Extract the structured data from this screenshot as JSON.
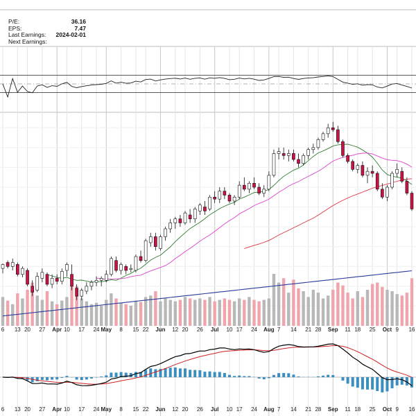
{
  "stats": [
    {
      "label": "P/E:",
      "value": "36.16"
    },
    {
      "label": "EPS:",
      "value": "7.47"
    },
    {
      "label": "Last Earnings:",
      "value": "2024-02-01"
    },
    {
      "label": "Next Earnings:",
      "value": ""
    }
  ],
  "colors": {
    "up_candle": "#ffffff",
    "down_candle": "#cc1144",
    "ma_short": "#2e7d32",
    "ma_mid": "#dd44cc",
    "ma_long": "#dd3344",
    "ma_200": "#2a3a99",
    "vol_up": "#b8b8b8",
    "vol_down": "#f0a5ad",
    "macd": "#000000",
    "signal": "#cc2222",
    "hist": "#3a8fc0",
    "osc_fill": "#3c8a3c"
  },
  "chart_data": {
    "type": "candlestick",
    "date_axis": {
      "ticks": [
        "6",
        "13",
        "20",
        "27",
        "Apr",
        "10",
        "17",
        "24",
        "May",
        "8",
        "15",
        "22",
        "Jun",
        "12",
        "20",
        "26",
        "Jul",
        "10",
        "17",
        "24",
        "Aug",
        "7",
        "14",
        "21",
        "28",
        "Sep",
        "11",
        "18",
        "25",
        "Oct",
        "9",
        "16"
      ],
      "bold_ticks": [
        "Apr",
        "May",
        "Jun",
        "Jul",
        "Aug",
        "Sep",
        "Oct"
      ]
    },
    "series": [
      {
        "name": "price",
        "kind": "ohlc",
        "values": [
          {
            "o": 378,
            "h": 383,
            "l": 373,
            "c": 382
          },
          {
            "o": 384,
            "h": 386,
            "l": 378,
            "c": 380
          },
          {
            "o": 380,
            "h": 388,
            "l": 376,
            "c": 384
          },
          {
            "o": 382,
            "h": 384,
            "l": 370,
            "c": 372
          },
          {
            "o": 372,
            "h": 380,
            "l": 369,
            "c": 378
          },
          {
            "o": 376,
            "h": 378,
            "l": 360,
            "c": 362
          },
          {
            "o": 360,
            "h": 366,
            "l": 350,
            "c": 354
          },
          {
            "o": 356,
            "h": 374,
            "l": 354,
            "c": 370
          },
          {
            "o": 368,
            "h": 378,
            "l": 364,
            "c": 374
          },
          {
            "o": 372,
            "h": 374,
            "l": 360,
            "c": 362
          },
          {
            "o": 362,
            "h": 372,
            "l": 358,
            "c": 368
          },
          {
            "o": 368,
            "h": 372,
            "l": 362,
            "c": 365
          },
          {
            "o": 365,
            "h": 378,
            "l": 362,
            "c": 375
          },
          {
            "o": 376,
            "h": 384,
            "l": 370,
            "c": 382
          },
          {
            "o": 372,
            "h": 382,
            "l": 356,
            "c": 360
          },
          {
            "o": 358,
            "h": 362,
            "l": 346,
            "c": 350
          },
          {
            "o": 350,
            "h": 358,
            "l": 346,
            "c": 356
          },
          {
            "o": 355,
            "h": 364,
            "l": 352,
            "c": 360
          },
          {
            "o": 360,
            "h": 366,
            "l": 356,
            "c": 364
          },
          {
            "o": 364,
            "h": 370,
            "l": 360,
            "c": 366
          },
          {
            "o": 366,
            "h": 370,
            "l": 360,
            "c": 368
          },
          {
            "o": 366,
            "h": 376,
            "l": 364,
            "c": 372
          },
          {
            "o": 372,
            "h": 390,
            "l": 370,
            "c": 388
          },
          {
            "o": 386,
            "h": 390,
            "l": 374,
            "c": 376
          },
          {
            "o": 376,
            "h": 384,
            "l": 372,
            "c": 382
          },
          {
            "o": 380,
            "h": 382,
            "l": 372,
            "c": 376
          },
          {
            "o": 377,
            "h": 382,
            "l": 374,
            "c": 378
          },
          {
            "o": 376,
            "h": 392,
            "l": 374,
            "c": 390
          },
          {
            "o": 390,
            "h": 396,
            "l": 384,
            "c": 386
          },
          {
            "o": 386,
            "h": 408,
            "l": 384,
            "c": 406
          },
          {
            "o": 404,
            "h": 414,
            "l": 400,
            "c": 410
          },
          {
            "o": 410,
            "h": 414,
            "l": 396,
            "c": 400
          },
          {
            "o": 398,
            "h": 412,
            "l": 396,
            "c": 410
          },
          {
            "o": 410,
            "h": 420,
            "l": 406,
            "c": 418
          },
          {
            "o": 418,
            "h": 428,
            "l": 414,
            "c": 424
          },
          {
            "o": 424,
            "h": 430,
            "l": 418,
            "c": 428
          },
          {
            "o": 428,
            "h": 432,
            "l": 420,
            "c": 424
          },
          {
            "o": 424,
            "h": 436,
            "l": 422,
            "c": 434
          },
          {
            "o": 432,
            "h": 438,
            "l": 424,
            "c": 428
          },
          {
            "o": 428,
            "h": 440,
            "l": 424,
            "c": 438
          },
          {
            "o": 436,
            "h": 444,
            "l": 432,
            "c": 442
          },
          {
            "o": 440,
            "h": 446,
            "l": 432,
            "c": 436
          },
          {
            "o": 438,
            "h": 452,
            "l": 436,
            "c": 450
          },
          {
            "o": 450,
            "h": 456,
            "l": 444,
            "c": 448
          },
          {
            "o": 448,
            "h": 460,
            "l": 444,
            "c": 456
          },
          {
            "o": 456,
            "h": 460,
            "l": 448,
            "c": 452
          },
          {
            "o": 452,
            "h": 454,
            "l": 444,
            "c": 446
          },
          {
            "o": 446,
            "h": 452,
            "l": 442,
            "c": 450
          },
          {
            "o": 450,
            "h": 466,
            "l": 448,
            "c": 462
          },
          {
            "o": 462,
            "h": 470,
            "l": 456,
            "c": 458
          },
          {
            "o": 458,
            "h": 466,
            "l": 454,
            "c": 464
          },
          {
            "o": 464,
            "h": 470,
            "l": 458,
            "c": 460
          },
          {
            "o": 460,
            "h": 464,
            "l": 452,
            "c": 454
          },
          {
            "o": 454,
            "h": 462,
            "l": 450,
            "c": 458
          },
          {
            "o": 458,
            "h": 476,
            "l": 456,
            "c": 472
          },
          {
            "o": 472,
            "h": 498,
            "l": 470,
            "c": 494
          },
          {
            "o": 494,
            "h": 500,
            "l": 488,
            "c": 496
          },
          {
            "o": 494,
            "h": 500,
            "l": 488,
            "c": 492
          },
          {
            "o": 492,
            "h": 498,
            "l": 486,
            "c": 494
          },
          {
            "o": 494,
            "h": 498,
            "l": 486,
            "c": 488
          },
          {
            "o": 488,
            "h": 494,
            "l": 480,
            "c": 484
          },
          {
            "o": 484,
            "h": 494,
            "l": 482,
            "c": 492
          },
          {
            "o": 492,
            "h": 500,
            "l": 488,
            "c": 498
          },
          {
            "o": 498,
            "h": 504,
            "l": 494,
            "c": 500
          },
          {
            "o": 500,
            "h": 510,
            "l": 498,
            "c": 508
          },
          {
            "o": 508,
            "h": 516,
            "l": 506,
            "c": 514
          },
          {
            "o": 514,
            "h": 524,
            "l": 510,
            "c": 520
          },
          {
            "o": 520,
            "h": 526,
            "l": 516,
            "c": 518
          },
          {
            "o": 518,
            "h": 522,
            "l": 504,
            "c": 506
          },
          {
            "o": 506,
            "h": 508,
            "l": 490,
            "c": 492
          },
          {
            "o": 492,
            "h": 494,
            "l": 484,
            "c": 486
          },
          {
            "o": 486,
            "h": 488,
            "l": 476,
            "c": 478
          },
          {
            "o": 478,
            "h": 484,
            "l": 474,
            "c": 482
          },
          {
            "o": 482,
            "h": 486,
            "l": 470,
            "c": 472
          },
          {
            "o": 472,
            "h": 480,
            "l": 464,
            "c": 476
          },
          {
            "o": 476,
            "h": 482,
            "l": 470,
            "c": 474
          },
          {
            "o": 474,
            "h": 476,
            "l": 456,
            "c": 458
          },
          {
            "o": 458,
            "h": 464,
            "l": 448,
            "c": 450
          },
          {
            "o": 450,
            "h": 462,
            "l": 446,
            "c": 460
          },
          {
            "o": 460,
            "h": 476,
            "l": 458,
            "c": 474
          },
          {
            "o": 474,
            "h": 484,
            "l": 470,
            "c": 478
          },
          {
            "o": 476,
            "h": 480,
            "l": 464,
            "c": 466
          },
          {
            "o": 466,
            "h": 470,
            "l": 452,
            "c": 454
          },
          {
            "o": 454,
            "h": 456,
            "l": 436,
            "c": 438
          }
        ]
      },
      {
        "name": "volume",
        "values": [
          40,
          35,
          30,
          45,
          38,
          50,
          60,
          42,
          36,
          48,
          34,
          30,
          35,
          40,
          70,
          55,
          38,
          34,
          30,
          32,
          28,
          36,
          45,
          38,
          32,
          30,
          28,
          35,
          33,
          40,
          42,
          48,
          34,
          38,
          36,
          34,
          36,
          40,
          38,
          36,
          38,
          36,
          40,
          34,
          36,
          38,
          36,
          34,
          38,
          36,
          40,
          36,
          34,
          36,
          38,
          72,
          60,
          66,
          46,
          64,
          52,
          48,
          40,
          50,
          46,
          38,
          42,
          50,
          60,
          56,
          46,
          38,
          48,
          40,
          50,
          58,
          60,
          54,
          50,
          48,
          44,
          42,
          46,
          66
        ]
      }
    ],
    "indicators": {
      "ma_periods": [
        10,
        20,
        50,
        200
      ],
      "macd_fast": 12,
      "macd_slow": 26,
      "macd_signal": 9,
      "osc_period": 14,
      "osc_ylim": [
        0,
        100
      ],
      "osc_levels": [
        80,
        50,
        20
      ]
    },
    "ylim_price": [
      320,
      530
    ]
  }
}
